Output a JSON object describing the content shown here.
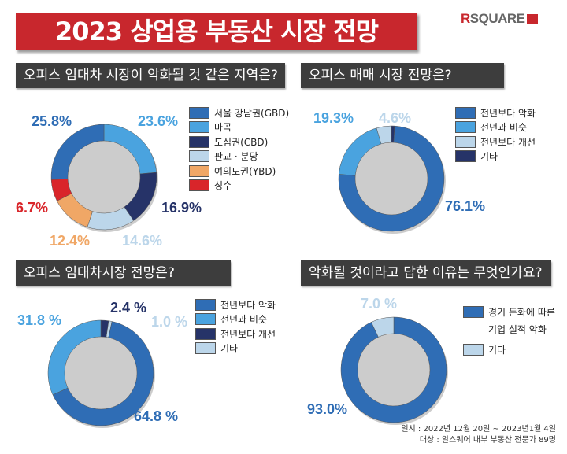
{
  "title": "2023 상업용 부동산 시장 전망",
  "logo": {
    "text_r": "R",
    "text_rest": "SQUARE"
  },
  "colors": {
    "accent": "#c8272d",
    "header_bg": "#3d3d3d"
  },
  "footer": {
    "line1": "일시 : 2022년 12월 20일 ~ 2023년1월 4일",
    "line2": "대상 : 알스퀘어 내부 부동산 전문가 89명"
  },
  "chart_data": [
    {
      "type": "pie",
      "style": "donut",
      "title": "오피스 임대차 시장이 악화될 것 같은 지역은?",
      "categories": [
        "서울 강남권(GBD)",
        "마곡",
        "도심권(CBD)",
        "판교 · 분당",
        "여의도권(YBD)",
        "성수"
      ],
      "values": [
        25.8,
        23.6,
        16.9,
        14.6,
        12.4,
        6.7
      ],
      "labels": [
        "25.8%",
        "23.6%",
        "16.9%",
        "14.6%",
        "12.4%",
        "6.7%"
      ],
      "colors": [
        "#2f6db5",
        "#4aa3df",
        "#263368",
        "#bcd6ea",
        "#f0a766",
        "#d9252a"
      ],
      "clockwise_order_from_top": [
        1,
        2,
        3,
        4,
        5,
        0
      ],
      "legend": "right"
    },
    {
      "type": "pie",
      "style": "donut",
      "title": "오피스 매매 시장 전망은?",
      "categories": [
        "전년보다 악화",
        "전년과 비슷",
        "전년보다 개선",
        "기타"
      ],
      "values": [
        76.1,
        19.3,
        4.6,
        null
      ],
      "labels": [
        "76.1%",
        "19.3%",
        "4.6%",
        ""
      ],
      "colors": [
        "#2f6db5",
        "#4aa3df",
        "#bcd6ea",
        "#263368"
      ],
      "clockwise_order_from_top": [
        3,
        0,
        1,
        2
      ],
      "legend": "right"
    },
    {
      "type": "pie",
      "style": "donut",
      "title": "오피스 임대차시장 전망은?",
      "categories": [
        "전년보다 악화",
        "전년과 비슷",
        "전년보다 개선",
        "기타"
      ],
      "values": [
        64.8,
        31.8,
        2.4,
        1.0
      ],
      "labels": [
        "64.8 %",
        "31.8 %",
        "2.4 %",
        "1.0 %"
      ],
      "colors": [
        "#2f6db5",
        "#4aa3df",
        "#263368",
        "#bcd6ea"
      ],
      "clockwise_order_from_top": [
        2,
        3,
        0,
        1
      ],
      "legend": "right"
    },
    {
      "type": "pie",
      "style": "donut",
      "title": "악화될 것이라고 답한 이유는 무엇인가요?",
      "categories": [
        "경기 둔화에 따른 기업 실적 악화",
        "기타"
      ],
      "category_lines": [
        [
          "경기 둔화에 따른",
          "기업 실적 악화"
        ],
        [
          "기타"
        ]
      ],
      "values": [
        93.0,
        7.0
      ],
      "labels": [
        "93.0%",
        "7.0 %"
      ],
      "colors": [
        "#2f6db5",
        "#bcd6ea"
      ],
      "clockwise_order_from_top": [
        0,
        1
      ],
      "legend": "right"
    }
  ]
}
